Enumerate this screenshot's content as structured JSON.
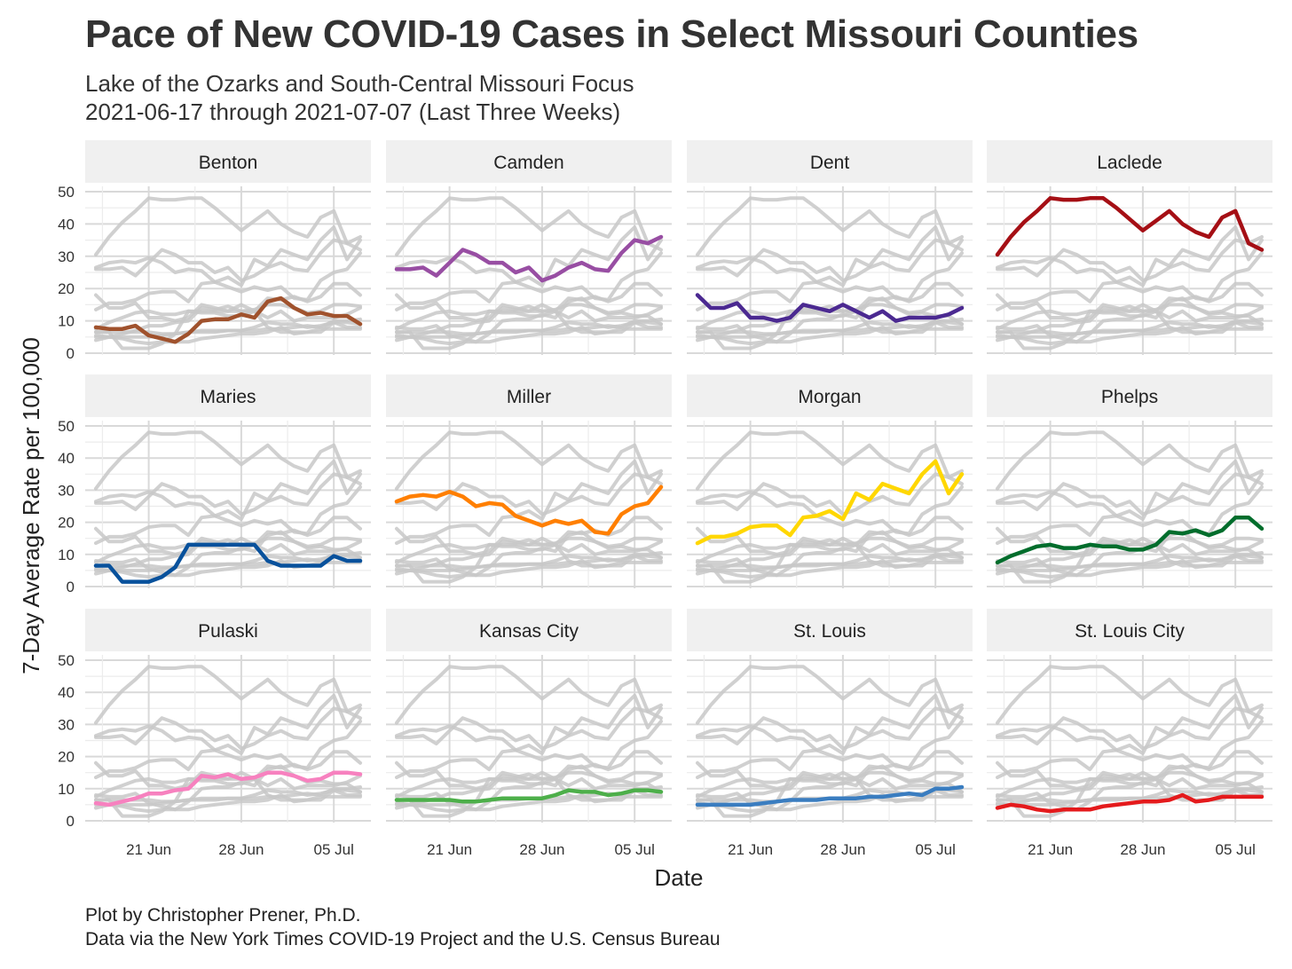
{
  "header": {
    "title": "Pace of New COVID-19 Cases in Select Missouri Counties",
    "subtitle_line1": "Lake of the Ozarks and South-Central Missouri Focus",
    "subtitle_line2": "2021-06-17 through 2021-07-07 (Last Three Weeks)"
  },
  "footer": {
    "caption_line1": "Plot by Christopher Prener, Ph.D.",
    "caption_line2": "Data via the New York Times COVID-19 Project and the U.S. Census Bureau"
  },
  "chart_data": {
    "type": "line",
    "layout": "small-multiples",
    "xlabel": "Date",
    "ylabel": "7-Day Average Rate per 100,000",
    "x": [
      "2021-06-17",
      "2021-06-18",
      "2021-06-19",
      "2021-06-20",
      "2021-06-21",
      "2021-06-22",
      "2021-06-23",
      "2021-06-24",
      "2021-06-25",
      "2021-06-26",
      "2021-06-27",
      "2021-06-28",
      "2021-06-29",
      "2021-06-30",
      "2021-07-01",
      "2021-07-02",
      "2021-07-03",
      "2021-07-04",
      "2021-07-05",
      "2021-07-06",
      "2021-07-07"
    ],
    "xticks": [
      "21 Jun",
      "28 Jun",
      "05 Jul"
    ],
    "xtick_dates": [
      "2021-06-21",
      "2021-06-28",
      "2021-07-05"
    ],
    "ylim": [
      0,
      50
    ],
    "yticks": [
      0,
      10,
      20,
      30,
      40,
      50
    ],
    "grid": true,
    "background_series_color": "#c8c8c8",
    "series": [
      {
        "name": "Benton",
        "color": "#a0522d",
        "values": [
          8,
          7.5,
          7.5,
          8.5,
          5.5,
          4.5,
          3.5,
          6,
          10,
          10.5,
          10.5,
          12,
          11,
          16,
          17,
          14,
          12,
          12.5,
          11.5,
          11.5,
          9
        ]
      },
      {
        "name": "Camden",
        "color": "#984ea3",
        "values": [
          26,
          26,
          26.5,
          24,
          28,
          32,
          30.5,
          28,
          28,
          25,
          26.5,
          22.5,
          24,
          26.5,
          28,
          26,
          25.5,
          31,
          35,
          34,
          36
        ]
      },
      {
        "name": "Dent",
        "color": "#4b2991",
        "values": [
          18,
          14,
          14,
          15.5,
          11,
          11,
          10,
          11,
          15,
          14,
          13,
          15,
          13,
          11,
          13,
          10,
          11,
          11,
          11,
          12,
          14
        ]
      },
      {
        "name": "Laclede",
        "color": "#a50f15",
        "values": [
          30.5,
          36,
          40.5,
          44,
          48,
          47.5,
          47.5,
          48,
          48,
          45,
          41.5,
          38,
          41,
          44,
          40,
          37.5,
          36,
          42,
          44,
          34,
          32
        ]
      },
      {
        "name": "Maries",
        "color": "#08519c",
        "values": [
          6.5,
          6.5,
          1.5,
          1.5,
          1.5,
          3,
          6,
          13,
          13,
          13,
          13,
          13,
          13,
          8,
          6.5,
          6.5,
          6.5,
          6.5,
          9.5,
          8,
          8
        ]
      },
      {
        "name": "Miller",
        "color": "#ff7f00",
        "values": [
          26.5,
          28,
          28.5,
          28,
          29.5,
          28,
          25,
          26,
          25.5,
          22,
          20.5,
          19,
          20.5,
          19.5,
          20.5,
          17,
          16.5,
          22.5,
          25,
          26,
          31
        ]
      },
      {
        "name": "Morgan",
        "color": "#ffd700",
        "values": [
          13.5,
          15.5,
          15.5,
          16.5,
          18.5,
          19,
          19,
          16,
          21.5,
          22,
          23.5,
          21,
          29,
          27,
          32,
          30.5,
          29,
          35,
          39,
          29,
          35
        ]
      },
      {
        "name": "Phelps",
        "color": "#006d2c",
        "values": [
          7.5,
          9.5,
          11,
          12.5,
          13,
          12,
          12,
          13,
          12.5,
          12.5,
          11.5,
          11.5,
          13,
          17,
          16.5,
          17.5,
          16,
          17.5,
          21.5,
          21.5,
          18
        ]
      },
      {
        "name": "Pulaski",
        "color": "#f781bf",
        "values": [
          5.5,
          5,
          6,
          7,
          8.5,
          8.5,
          9.5,
          10,
          14,
          13.5,
          14.5,
          13,
          13.5,
          15,
          15,
          14,
          12.5,
          13,
          15,
          15,
          14.5
        ]
      },
      {
        "name": "Kansas City",
        "color": "#4daf4a",
        "values": [
          6.5,
          6.5,
          6.5,
          6.5,
          6.5,
          6,
          6,
          6.5,
          7,
          7,
          7,
          7,
          8,
          9.5,
          9,
          9,
          8,
          8.5,
          9.5,
          9.5,
          9
        ]
      },
      {
        "name": "St. Louis",
        "color": "#3a7dc0",
        "values": [
          5,
          5,
          5,
          5,
          5,
          5.5,
          6,
          6.5,
          6.5,
          6.5,
          7,
          7,
          7,
          7.5,
          7.5,
          8,
          8.5,
          8,
          10,
          10,
          10.5
        ]
      },
      {
        "name": "St. Louis City",
        "color": "#e41a1c",
        "values": [
          4,
          5,
          4.5,
          3.5,
          3,
          3.5,
          3.5,
          3.5,
          4.5,
          5,
          5.5,
          6,
          6,
          6.5,
          8,
          6,
          6.5,
          7.5,
          7.5,
          7.5,
          7.5
        ]
      }
    ]
  }
}
